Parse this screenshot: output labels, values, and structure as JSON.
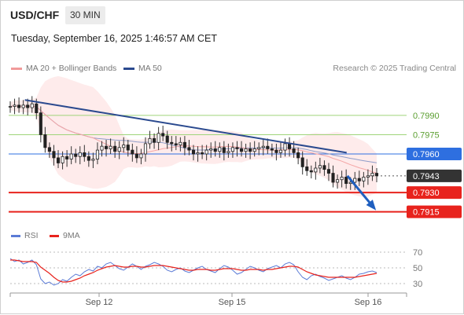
{
  "header": {
    "pair": "USD/CHF",
    "timeframe": "30 MIN",
    "datetime": "Tuesday, September 16, 2025 1:46:57 AM CET"
  },
  "legend": {
    "ma20": {
      "label": "MA 20 + Bollinger Bands",
      "color": "#f19a9a"
    },
    "ma50": {
      "label": "MA 50",
      "color": "#2b4a8f"
    },
    "credit": "Research © 2025 Trading Central",
    "rsi": {
      "label": "RSI",
      "color": "#5b7bd6"
    },
    "ma9": {
      "label": "9MA",
      "color": "#e8231d"
    }
  },
  "chart_data": [
    {
      "type": "candlestick",
      "title": "USD/CHF",
      "x_ticks": [
        "Sep 12",
        "Sep 15",
        "Sep 16"
      ],
      "levels": [
        {
          "value": 0.799,
          "label": "0.7990",
          "style": "green-line"
        },
        {
          "value": 0.7975,
          "label": "0.7975",
          "style": "green-line"
        },
        {
          "value": 0.796,
          "label": "0.7960",
          "style": "blue-line-badge"
        },
        {
          "value": 0.7943,
          "label": "0.7943",
          "style": "current-price-badge"
        },
        {
          "value": 0.793,
          "label": "0.7930",
          "style": "red-line-badge"
        },
        {
          "value": 0.7915,
          "label": "0.7915",
          "style": "red-line-badge"
        }
      ],
      "trendline": {
        "from": {
          "x": 0.04,
          "y": 0.8002
        },
        "to": {
          "x": 0.918,
          "y": 0.7961
        }
      },
      "forecast_arrow": {
        "from": {
          "x": 0.92,
          "y": 0.7943
        },
        "to": {
          "x": 0.99,
          "y": 0.7919
        }
      },
      "close_series": [
        0.7997,
        0.7998,
        0.7996,
        0.7998,
        0.7996,
        0.7999,
        0.7992,
        0.7975,
        0.7965,
        0.7962,
        0.7957,
        0.7953,
        0.7958,
        0.7956,
        0.796,
        0.7958,
        0.7961,
        0.7958,
        0.7955,
        0.7956,
        0.7963,
        0.7966,
        0.7964,
        0.7966,
        0.7962,
        0.7965,
        0.7967,
        0.7963,
        0.796,
        0.7957,
        0.796,
        0.7968,
        0.7972,
        0.7969,
        0.7976,
        0.7974,
        0.7969,
        0.7968,
        0.7967,
        0.7969,
        0.7965,
        0.7963,
        0.796,
        0.7961,
        0.796,
        0.7963,
        0.7964,
        0.7962,
        0.7965,
        0.7961,
        0.7962,
        0.7965,
        0.7964,
        0.7962,
        0.7964,
        0.7962,
        0.7964,
        0.7965,
        0.7966,
        0.7964,
        0.7963,
        0.7961,
        0.7963,
        0.7968,
        0.7964,
        0.7961,
        0.7957,
        0.795,
        0.7947,
        0.7946,
        0.7949,
        0.7951,
        0.7948,
        0.7945,
        0.7938,
        0.794,
        0.7942,
        0.7937,
        0.7938,
        0.7941,
        0.7939,
        0.7942,
        0.7943,
        0.7945,
        0.7943
      ],
      "y_range": [
        0.7905,
        0.8015
      ]
    },
    {
      "type": "line",
      "title": "RSI",
      "series": [
        {
          "name": "RSI",
          "values": [
            62,
            58,
            60,
            55,
            57,
            60,
            54,
            36,
            30,
            32,
            28,
            30,
            35,
            33,
            38,
            42,
            40,
            45,
            48,
            46,
            52,
            50,
            55,
            57,
            53,
            49,
            47,
            51,
            55,
            52,
            48,
            52,
            54,
            57,
            55,
            52,
            47,
            45,
            48,
            50,
            46,
            44,
            47,
            50,
            52,
            48,
            46,
            44,
            49,
            53,
            51,
            47,
            42,
            44,
            48,
            52,
            50,
            47,
            45,
            49,
            51,
            53,
            50,
            55,
            57,
            54,
            45,
            38,
            35,
            40,
            42,
            39,
            37,
            34,
            36,
            38,
            40,
            37,
            35,
            38,
            42,
            43,
            45,
            46,
            44
          ]
        },
        {
          "name": "9MA",
          "values": [
            60,
            60,
            59,
            58,
            58,
            58,
            57,
            51,
            47,
            43,
            38,
            34,
            32,
            32,
            33,
            35,
            37,
            40,
            42,
            44,
            47,
            49,
            51,
            52,
            53,
            52,
            51,
            51,
            52,
            52,
            51,
            51,
            52,
            53,
            53,
            53,
            52,
            51,
            50,
            49,
            48,
            47,
            47,
            48,
            48,
            48,
            47,
            47,
            48,
            49,
            49,
            49,
            48,
            47,
            47,
            48,
            48,
            48,
            47,
            48,
            48,
            49,
            50,
            51,
            52,
            52,
            51,
            48,
            45,
            43,
            41,
            40,
            39,
            38,
            38,
            38,
            38,
            38,
            38,
            38,
            39,
            40,
            41,
            42,
            43
          ]
        }
      ],
      "y_ticks": [
        70,
        50,
        30
      ],
      "y_range": [
        20,
        80
      ]
    }
  ]
}
